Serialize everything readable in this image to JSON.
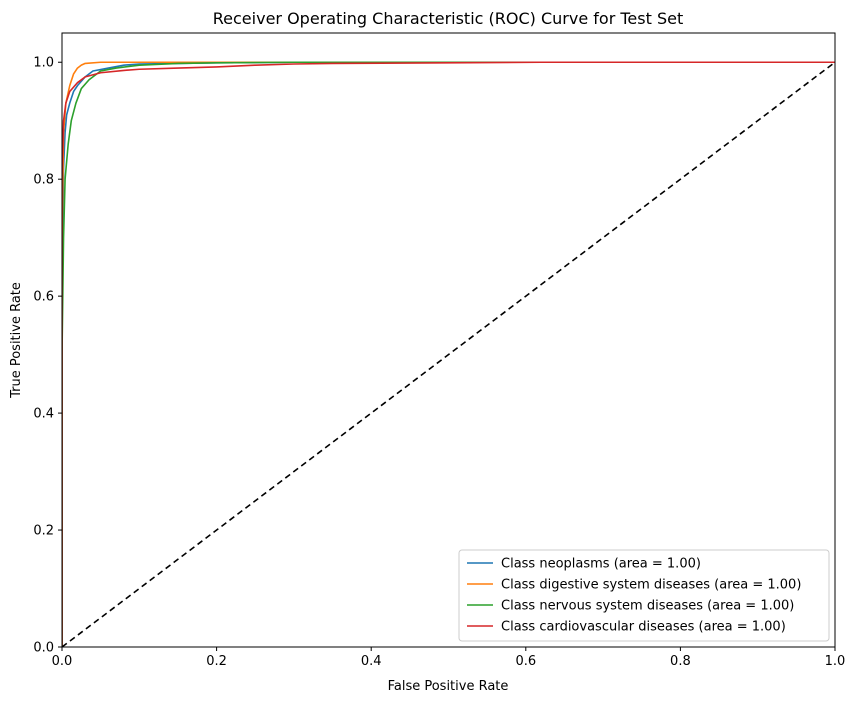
{
  "chart_data": {
    "type": "line",
    "title": "Receiver Operating Characteristic (ROC) Curve for Test Set",
    "xlabel": "False Positive Rate",
    "ylabel": "True Positive Rate",
    "xlim": [
      0.0,
      1.0
    ],
    "ylim": [
      0.0,
      1.05
    ],
    "xticks": [
      0.0,
      0.2,
      0.4,
      0.6,
      0.8,
      1.0
    ],
    "yticks": [
      0.0,
      0.2,
      0.4,
      0.6,
      0.8,
      1.0
    ],
    "xtick_labels": [
      "0.0",
      "0.2",
      "0.4",
      "0.6",
      "0.8",
      "1.0"
    ],
    "ytick_labels": [
      "0.0",
      "0.2",
      "0.4",
      "0.6",
      "0.8",
      "1.0"
    ],
    "grid": false,
    "legend_position": "lower-right",
    "series": [
      {
        "name": "Class neoplasms (area = 1.00)",
        "color": "#1f77b4",
        "x": [
          0.0,
          0.0,
          0.002,
          0.004,
          0.006,
          0.01,
          0.015,
          0.02,
          0.03,
          0.04,
          0.06,
          0.08,
          0.1,
          0.15,
          0.2,
          0.3,
          0.5,
          1.0
        ],
        "y": [
          0.0,
          0.6,
          0.82,
          0.88,
          0.91,
          0.93,
          0.95,
          0.96,
          0.975,
          0.985,
          0.99,
          0.995,
          0.997,
          0.998,
          0.999,
          1.0,
          1.0,
          1.0
        ]
      },
      {
        "name": "Class digestive system diseases (area = 1.00)",
        "color": "#ff7f0e",
        "x": [
          0.0,
          0.0,
          0.002,
          0.005,
          0.01,
          0.015,
          0.02,
          0.025,
          0.03,
          0.05,
          0.1,
          0.3,
          1.0
        ],
        "y": [
          0.0,
          0.7,
          0.88,
          0.93,
          0.96,
          0.98,
          0.99,
          0.995,
          0.998,
          1.0,
          1.0,
          1.0,
          1.0
        ]
      },
      {
        "name": "Class nervous system diseases (area = 1.00)",
        "color": "#2ca02c",
        "x": [
          0.0,
          0.0,
          0.002,
          0.004,
          0.008,
          0.012,
          0.018,
          0.025,
          0.035,
          0.05,
          0.07,
          0.1,
          0.15,
          0.2,
          0.3,
          0.5,
          1.0
        ],
        "y": [
          0.0,
          0.5,
          0.7,
          0.8,
          0.86,
          0.9,
          0.93,
          0.955,
          0.97,
          0.985,
          0.99,
          0.995,
          0.998,
          0.999,
          1.0,
          1.0,
          1.0
        ]
      },
      {
        "name": "Class cardiovascular diseases (area = 1.00)",
        "color": "#d62728",
        "x": [
          0.0,
          0.0,
          0.002,
          0.005,
          0.01,
          0.02,
          0.03,
          0.05,
          0.08,
          0.1,
          0.15,
          0.2,
          0.25,
          0.3,
          0.35,
          0.5,
          0.62,
          1.0
        ],
        "y": [
          0.0,
          0.8,
          0.9,
          0.93,
          0.95,
          0.965,
          0.975,
          0.982,
          0.986,
          0.988,
          0.99,
          0.992,
          0.995,
          0.997,
          0.998,
          0.999,
          1.0,
          1.0
        ]
      }
    ],
    "reference_line": {
      "x": [
        0.0,
        1.0
      ],
      "y": [
        0.0,
        1.0
      ],
      "color": "#000000",
      "style": "dashed"
    }
  }
}
